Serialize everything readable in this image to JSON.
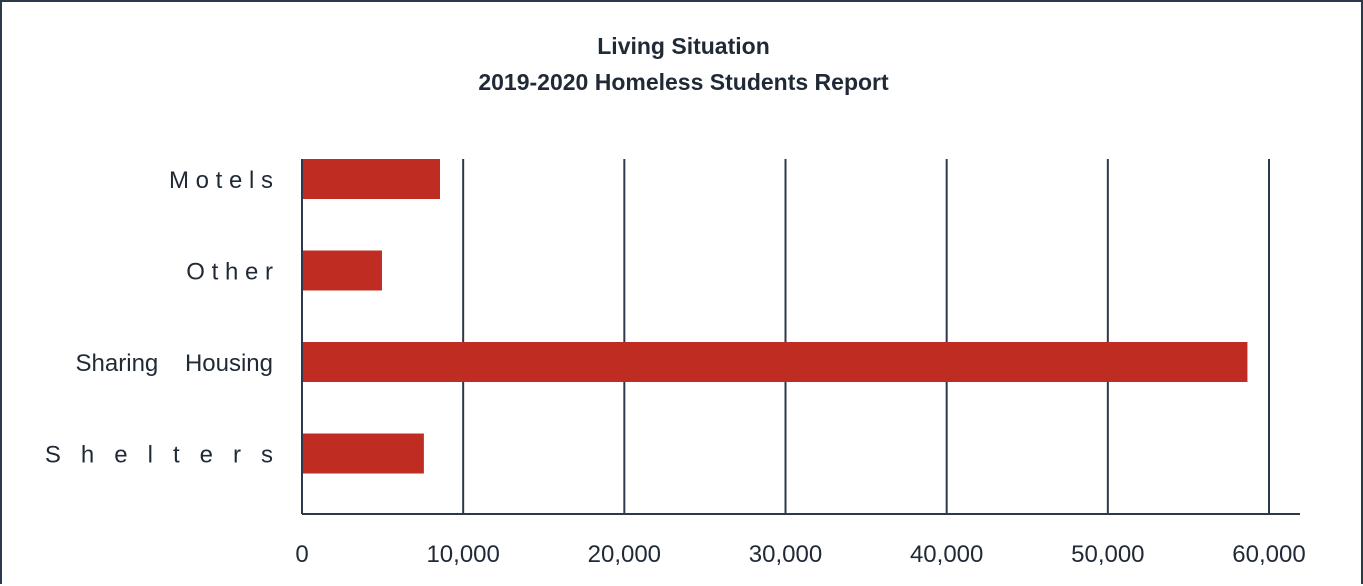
{
  "chart_data": {
    "type": "bar",
    "orientation": "horizontal",
    "title": "Living Situation",
    "subtitle": "2019-2020 Homeless Students Report",
    "categories": [
      "Motels",
      "Other",
      "Sharing Housing",
      "Shelters"
    ],
    "category_labels": [
      "M o t e l s",
      "O t h e r",
      "Sharing    Housing",
      "S   h   e   l   t   e   r   s"
    ],
    "values": [
      8500,
      4900,
      58600,
      7500
    ],
    "xlim": [
      0,
      60000
    ],
    "x_ticks": [
      0,
      10000,
      20000,
      30000,
      40000,
      50000,
      60000
    ],
    "x_tick_labels": [
      "0",
      "10,000",
      "20,000",
      "30,000",
      "40,000",
      "50,000",
      "60,000"
    ],
    "grid": "vertical",
    "legend": "none",
    "colors": {
      "bar": "#bf2d22",
      "grid": "#2b3a4a",
      "text": "#1f2a36",
      "border": "#2b3a4a"
    }
  }
}
